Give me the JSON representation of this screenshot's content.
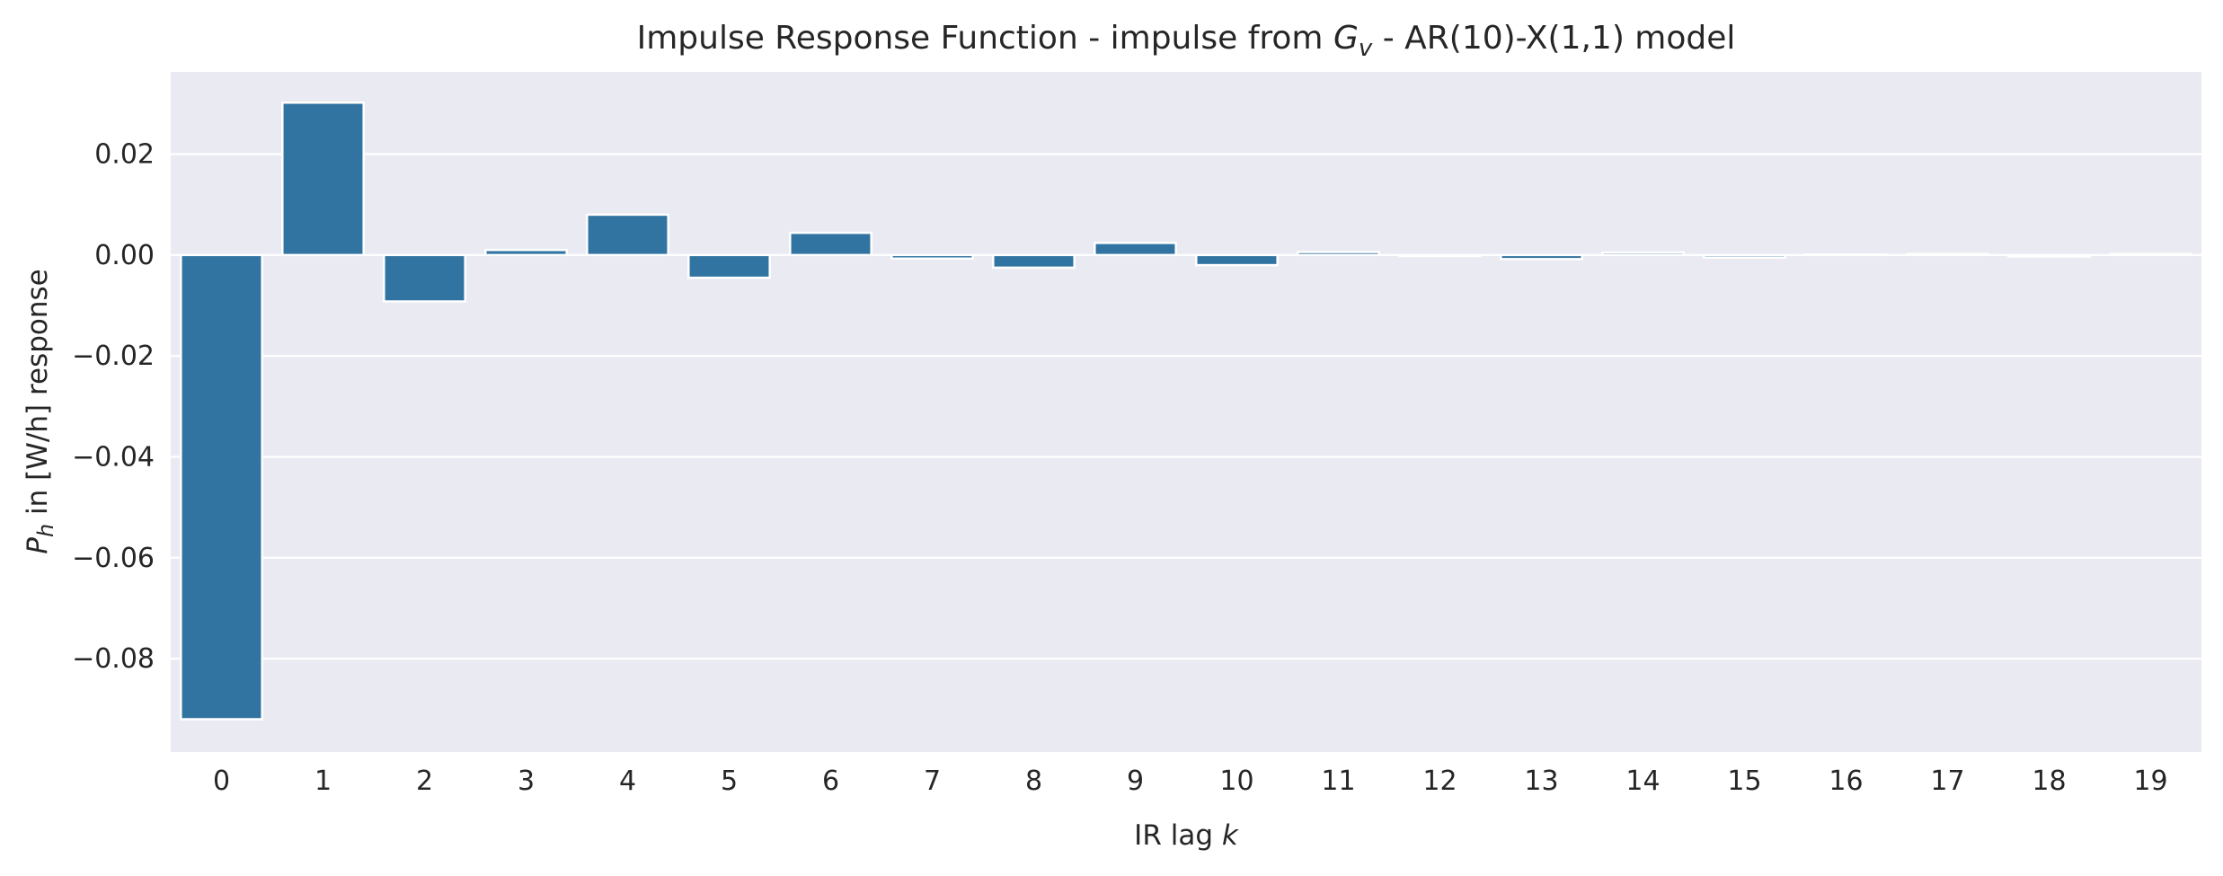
{
  "chart_data": {
    "type": "bar",
    "title": {
      "prefix": "Impulse Response Function - impulse from ",
      "symbol": "G",
      "symbol_sub": "v",
      "suffix": " - AR(10)-X(1,1) model"
    },
    "xlabel": {
      "text": "IR lag ",
      "symbol": "k"
    },
    "ylabel": {
      "symbol": "P",
      "symbol_sub": "h",
      "text": " in [W/h] response"
    },
    "categories": [
      "0",
      "1",
      "2",
      "3",
      "4",
      "5",
      "6",
      "7",
      "8",
      "9",
      "10",
      "11",
      "12",
      "13",
      "14",
      "15",
      "16",
      "17",
      "18",
      "19"
    ],
    "values": [
      -0.092,
      0.0302,
      -0.0092,
      0.001,
      0.008,
      -0.0045,
      0.0044,
      -0.0007,
      -0.0025,
      0.0024,
      -0.002,
      0.0006,
      -0.0002,
      -0.0008,
      0.0005,
      -0.0005,
      0.0001,
      0.0002,
      -0.0003,
      0.0002
    ],
    "yticks": [
      {
        "value": 0.02,
        "label": "0.02"
      },
      {
        "value": 0.0,
        "label": "0.00"
      },
      {
        "value": -0.02,
        "label": "−0.02"
      },
      {
        "value": -0.04,
        "label": "−0.04"
      },
      {
        "value": -0.06,
        "label": "−0.06"
      },
      {
        "value": -0.08,
        "label": "−0.08"
      }
    ],
    "ylim": [
      -0.0985,
      0.0363
    ],
    "grid": true,
    "colors": {
      "bar": "#3274a1",
      "background": "#eaeaf2",
      "grid": "#ffffff",
      "text": "#262626"
    }
  }
}
